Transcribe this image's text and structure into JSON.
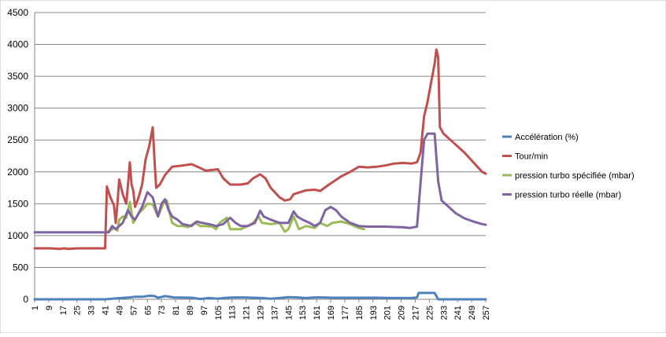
{
  "chart_data": {
    "type": "line",
    "title": "",
    "xlabel": "",
    "ylabel": "",
    "ylim": [
      0,
      4500
    ],
    "yticks": [
      0,
      500,
      1000,
      1500,
      2000,
      2500,
      3000,
      3500,
      4000,
      4500
    ],
    "xlim": [
      1,
      257
    ],
    "xticks": [
      1,
      9,
      17,
      25,
      33,
      41,
      49,
      57,
      65,
      73,
      81,
      89,
      97,
      105,
      113,
      121,
      129,
      137,
      145,
      153,
      161,
      169,
      177,
      185,
      193,
      201,
      209,
      217,
      225,
      233,
      241,
      249,
      257
    ],
    "grid": "horizontal",
    "legend_position": "right",
    "series": [
      {
        "name": "Accélération (%)",
        "color": "#4f81bd",
        "points": [
          [
            1,
            0
          ],
          [
            41,
            0
          ],
          [
            45,
            10
          ],
          [
            50,
            20
          ],
          [
            55,
            30
          ],
          [
            58,
            40
          ],
          [
            62,
            40
          ],
          [
            66,
            55
          ],
          [
            69,
            50
          ],
          [
            71,
            25
          ],
          [
            75,
            50
          ],
          [
            80,
            30
          ],
          [
            90,
            25
          ],
          [
            95,
            5
          ],
          [
            100,
            20
          ],
          [
            105,
            10
          ],
          [
            110,
            25
          ],
          [
            115,
            30
          ],
          [
            120,
            30
          ],
          [
            125,
            25
          ],
          [
            130,
            20
          ],
          [
            135,
            10
          ],
          [
            140,
            20
          ],
          [
            145,
            35
          ],
          [
            150,
            30
          ],
          [
            155,
            20
          ],
          [
            160,
            30
          ],
          [
            165,
            30
          ],
          [
            170,
            25
          ],
          [
            175,
            25
          ],
          [
            185,
            25
          ],
          [
            195,
            25
          ],
          [
            205,
            20
          ],
          [
            215,
            20
          ],
          [
            218,
            30
          ],
          [
            219,
            100
          ],
          [
            228,
            100
          ],
          [
            230,
            0
          ],
          [
            257,
            0
          ]
        ]
      },
      {
        "name": "Tour/min",
        "color": "#c0504d",
        "points": [
          [
            1,
            800
          ],
          [
            10,
            800
          ],
          [
            15,
            790
          ],
          [
            18,
            800
          ],
          [
            20,
            790
          ],
          [
            25,
            800
          ],
          [
            35,
            800
          ],
          [
            41,
            800
          ],
          [
            42,
            1770
          ],
          [
            44,
            1600
          ],
          [
            46,
            1480
          ],
          [
            47,
            1200
          ],
          [
            48,
            1500
          ],
          [
            49,
            1880
          ],
          [
            51,
            1650
          ],
          [
            53,
            1500
          ],
          [
            54,
            1800
          ],
          [
            55,
            2150
          ],
          [
            56,
            1800
          ],
          [
            57,
            1700
          ],
          [
            58,
            1450
          ],
          [
            60,
            1600
          ],
          [
            62,
            1800
          ],
          [
            64,
            2200
          ],
          [
            66,
            2400
          ],
          [
            68,
            2700
          ],
          [
            69,
            2200
          ],
          [
            70,
            1750
          ],
          [
            72,
            1800
          ],
          [
            75,
            1950
          ],
          [
            79,
            2080
          ],
          [
            85,
            2100
          ],
          [
            90,
            2120
          ],
          [
            95,
            2060
          ],
          [
            98,
            2020
          ],
          [
            102,
            2030
          ],
          [
            105,
            2040
          ],
          [
            108,
            1900
          ],
          [
            112,
            1800
          ],
          [
            118,
            1800
          ],
          [
            122,
            1820
          ],
          [
            125,
            1900
          ],
          [
            129,
            1960
          ],
          [
            132,
            1900
          ],
          [
            135,
            1750
          ],
          [
            140,
            1600
          ],
          [
            143,
            1550
          ],
          [
            146,
            1570
          ],
          [
            148,
            1650
          ],
          [
            155,
            1710
          ],
          [
            160,
            1720
          ],
          [
            163,
            1700
          ],
          [
            168,
            1800
          ],
          [
            175,
            1930
          ],
          [
            180,
            2000
          ],
          [
            185,
            2080
          ],
          [
            190,
            2070
          ],
          [
            195,
            2080
          ],
          [
            200,
            2100
          ],
          [
            205,
            2130
          ],
          [
            210,
            2140
          ],
          [
            215,
            2130
          ],
          [
            218,
            2150
          ],
          [
            220,
            2300
          ],
          [
            222,
            2870
          ],
          [
            224,
            3100
          ],
          [
            226,
            3400
          ],
          [
            228,
            3700
          ],
          [
            229,
            3920
          ],
          [
            230,
            3800
          ],
          [
            231,
            2700
          ],
          [
            233,
            2600
          ],
          [
            237,
            2500
          ],
          [
            245,
            2300
          ],
          [
            250,
            2150
          ],
          [
            255,
            2000
          ],
          [
            257,
            1970
          ]
        ]
      },
      {
        "name": "pression turbo spécifiée (mbar)",
        "color": "#9bbb59",
        "points": [
          [
            42,
            1060
          ],
          [
            44,
            1080
          ],
          [
            46,
            1120
          ],
          [
            48,
            1080
          ],
          [
            49,
            1250
          ],
          [
            51,
            1300
          ],
          [
            53,
            1280
          ],
          [
            55,
            1530
          ],
          [
            57,
            1200
          ],
          [
            60,
            1350
          ],
          [
            62,
            1400
          ],
          [
            65,
            1500
          ],
          [
            68,
            1490
          ],
          [
            71,
            1300
          ],
          [
            74,
            1500
          ],
          [
            76,
            1550
          ],
          [
            79,
            1200
          ],
          [
            82,
            1150
          ],
          [
            85,
            1150
          ],
          [
            88,
            1130
          ],
          [
            92,
            1200
          ],
          [
            95,
            1150
          ],
          [
            98,
            1150
          ],
          [
            102,
            1140
          ],
          [
            104,
            1100
          ],
          [
            106,
            1200
          ],
          [
            110,
            1280
          ],
          [
            112,
            1100
          ],
          [
            118,
            1100
          ],
          [
            122,
            1150
          ],
          [
            125,
            1200
          ],
          [
            128,
            1300
          ],
          [
            130,
            1200
          ],
          [
            135,
            1180
          ],
          [
            140,
            1200
          ],
          [
            143,
            1060
          ],
          [
            145,
            1100
          ],
          [
            148,
            1300
          ],
          [
            151,
            1100
          ],
          [
            155,
            1150
          ],
          [
            160,
            1120
          ],
          [
            163,
            1200
          ],
          [
            167,
            1150
          ],
          [
            170,
            1200
          ],
          [
            175,
            1220
          ],
          [
            180,
            1180
          ],
          [
            185,
            1120
          ],
          [
            188,
            1100
          ]
        ]
      },
      {
        "name": "pression turbo réelle (mbar)",
        "color": "#8064a2",
        "points": [
          [
            1,
            1050
          ],
          [
            20,
            1050
          ],
          [
            41,
            1050
          ],
          [
            43,
            1050
          ],
          [
            45,
            1150
          ],
          [
            47,
            1100
          ],
          [
            49,
            1150
          ],
          [
            51,
            1200
          ],
          [
            54,
            1400
          ],
          [
            56,
            1300
          ],
          [
            58,
            1250
          ],
          [
            60,
            1350
          ],
          [
            62,
            1450
          ],
          [
            65,
            1680
          ],
          [
            68,
            1600
          ],
          [
            71,
            1300
          ],
          [
            73,
            1500
          ],
          [
            75,
            1570
          ],
          [
            77,
            1400
          ],
          [
            79,
            1300
          ],
          [
            82,
            1250
          ],
          [
            85,
            1180
          ],
          [
            90,
            1150
          ],
          [
            93,
            1220
          ],
          [
            96,
            1200
          ],
          [
            100,
            1180
          ],
          [
            104,
            1150
          ],
          [
            108,
            1180
          ],
          [
            112,
            1280
          ],
          [
            115,
            1200
          ],
          [
            118,
            1150
          ],
          [
            122,
            1150
          ],
          [
            126,
            1200
          ],
          [
            129,
            1390
          ],
          [
            131,
            1300
          ],
          [
            135,
            1250
          ],
          [
            140,
            1200
          ],
          [
            145,
            1200
          ],
          [
            148,
            1380
          ],
          [
            150,
            1300
          ],
          [
            153,
            1250
          ],
          [
            157,
            1200
          ],
          [
            160,
            1150
          ],
          [
            163,
            1200
          ],
          [
            166,
            1400
          ],
          [
            169,
            1450
          ],
          [
            172,
            1400
          ],
          [
            175,
            1300
          ],
          [
            180,
            1200
          ],
          [
            185,
            1150
          ],
          [
            190,
            1140
          ],
          [
            200,
            1140
          ],
          [
            210,
            1130
          ],
          [
            214,
            1120
          ],
          [
            218,
            1140
          ],
          [
            222,
            2500
          ],
          [
            224,
            2600
          ],
          [
            228,
            2600
          ],
          [
            230,
            1850
          ],
          [
            232,
            1550
          ],
          [
            236,
            1450
          ],
          [
            240,
            1350
          ],
          [
            245,
            1270
          ],
          [
            250,
            1220
          ],
          [
            255,
            1180
          ],
          [
            257,
            1170
          ]
        ]
      }
    ]
  }
}
